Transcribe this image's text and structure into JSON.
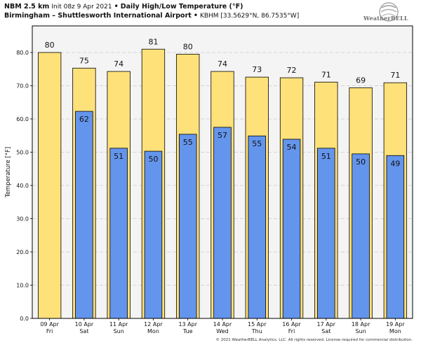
{
  "header": {
    "model": "NBM 2.5 km",
    "init": "Init 08z 9 Apr 2021",
    "bullet": "•",
    "product": "Daily High/Low Temperature (°F)",
    "location": "Birmingham – Shuttlesworth International Airport",
    "station": "KBHM [33.5629°N, 86.7535°W]"
  },
  "logo": {
    "text": "WeatherBELL"
  },
  "copyright": "© 2021 WeatherBELL Analytics, LLC. All rights reserved. License required for commercial distribution.",
  "colors": {
    "high": "#ffe17a",
    "low": "#6495ed",
    "plot_bg": "#f4f4f4",
    "border": "#000000"
  },
  "chart_data": {
    "type": "bar",
    "ylabel": "Temperature [°F]",
    "ylim": [
      0,
      88
    ],
    "yticks": [
      "0.0",
      "10.0",
      "20.0",
      "30.0",
      "40.0",
      "50.0",
      "60.0",
      "70.0",
      "80.0"
    ],
    "grid": true,
    "categories": [
      [
        "09 Apr",
        "Fri"
      ],
      [
        "10 Apr",
        "Sat"
      ],
      [
        "11 Apr",
        "Sun"
      ],
      [
        "12 Apr",
        "Mon"
      ],
      [
        "13 Apr",
        "Tue"
      ],
      [
        "14 Apr",
        "Wed"
      ],
      [
        "15 Apr",
        "Thu"
      ],
      [
        "16 Apr",
        "Fri"
      ],
      [
        "17 Apr",
        "Sat"
      ],
      [
        "18 Apr",
        "Sun"
      ],
      [
        "19 Apr",
        "Mon"
      ]
    ],
    "series": [
      {
        "values": [
          80,
          75.3,
          74.3,
          81,
          79.5,
          74.3,
          72.6,
          72.4,
          71.1,
          69.4,
          70.9
        ],
        "labels": [
          "80",
          "75",
          "74",
          "81",
          "80",
          "74",
          "73",
          "72",
          "71",
          "69",
          "71"
        ]
      },
      {
        "values": [
          null,
          62.3,
          51.2,
          50.3,
          55.4,
          57.5,
          54.9,
          53.9,
          51.2,
          49.5,
          49
        ],
        "labels": [
          "",
          "62",
          "51",
          "50",
          "55",
          "57",
          "55",
          "54",
          "51",
          "50",
          "49"
        ]
      }
    ]
  }
}
